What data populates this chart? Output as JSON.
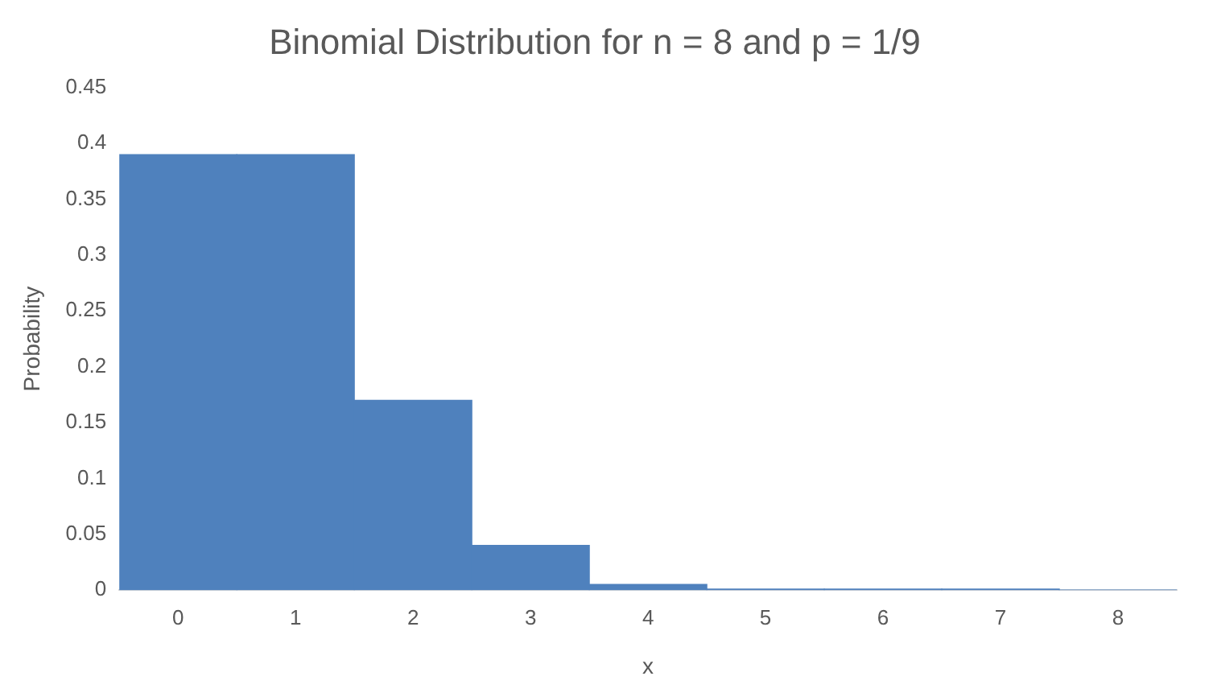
{
  "chart_data": {
    "type": "bar",
    "title": "Binomial Distribution for n = 8 and p = 1/9",
    "xlabel": "x",
    "ylabel": "Probability",
    "categories": [
      "0",
      "1",
      "2",
      "3",
      "4",
      "5",
      "6",
      "7",
      "8"
    ],
    "values": [
      0.39,
      0.39,
      0.17,
      0.04,
      0.005,
      0.001,
      0.001,
      0.001,
      0
    ],
    "color": "#4f81bd",
    "ylim": [
      0,
      0.45
    ],
    "yticks": [
      0,
      0.05,
      0.1,
      0.15,
      0.2,
      0.25,
      0.3,
      0.35,
      0.4,
      0.45
    ],
    "grid": false,
    "legend": false
  }
}
